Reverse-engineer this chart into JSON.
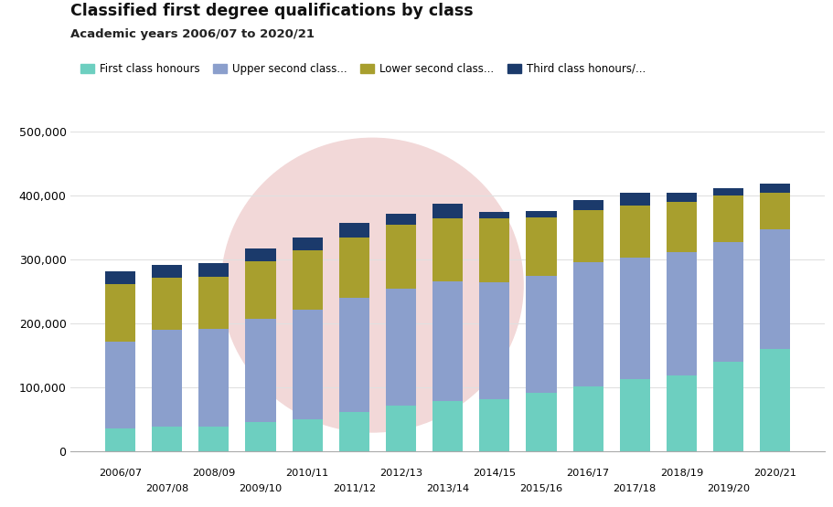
{
  "title": "Classified first degree qualifications by class",
  "subtitle": "Academic years 2006/07 to 2020/21",
  "years": [
    "2006/07",
    "2007/08",
    "2008/09",
    "2009/10",
    "2010/11",
    "2011/12",
    "2012/13",
    "2013/14",
    "2014/15",
    "2015/16",
    "2016/17",
    "2017/18",
    "2018/19",
    "2019/20",
    "2020/21"
  ],
  "first_class": [
    35000,
    38000,
    38000,
    45000,
    50000,
    62000,
    72000,
    78000,
    82000,
    91000,
    101000,
    113000,
    118000,
    140000,
    160000
  ],
  "upper_second": [
    137000,
    152000,
    153000,
    162000,
    172000,
    178000,
    182000,
    188000,
    183000,
    183000,
    195000,
    190000,
    194000,
    188000,
    188000
  ],
  "lower_second": [
    89000,
    82000,
    82000,
    90000,
    92000,
    95000,
    100000,
    98000,
    100000,
    92000,
    82000,
    82000,
    78000,
    72000,
    56000
  ],
  "third_class": [
    20000,
    20000,
    22000,
    20000,
    20000,
    22000,
    18000,
    24000,
    10000,
    10000,
    15000,
    20000,
    15000,
    12000,
    15000
  ],
  "colors": {
    "first_class": "#6dcfc0",
    "upper_second": "#8b9fcc",
    "lower_second": "#a89f2e",
    "third_class": "#1b3a6b"
  },
  "legend_labels": [
    "First class honours",
    "Upper second class...",
    "Lower second class...",
    "Third class honours/..."
  ],
  "ylim": [
    0,
    500000
  ],
  "yticks": [
    0,
    100000,
    200000,
    300000,
    400000,
    500000
  ],
  "background_color": "#ffffff",
  "grid_color": "#e0e0e0",
  "watermark_color": "#f2d8d8"
}
